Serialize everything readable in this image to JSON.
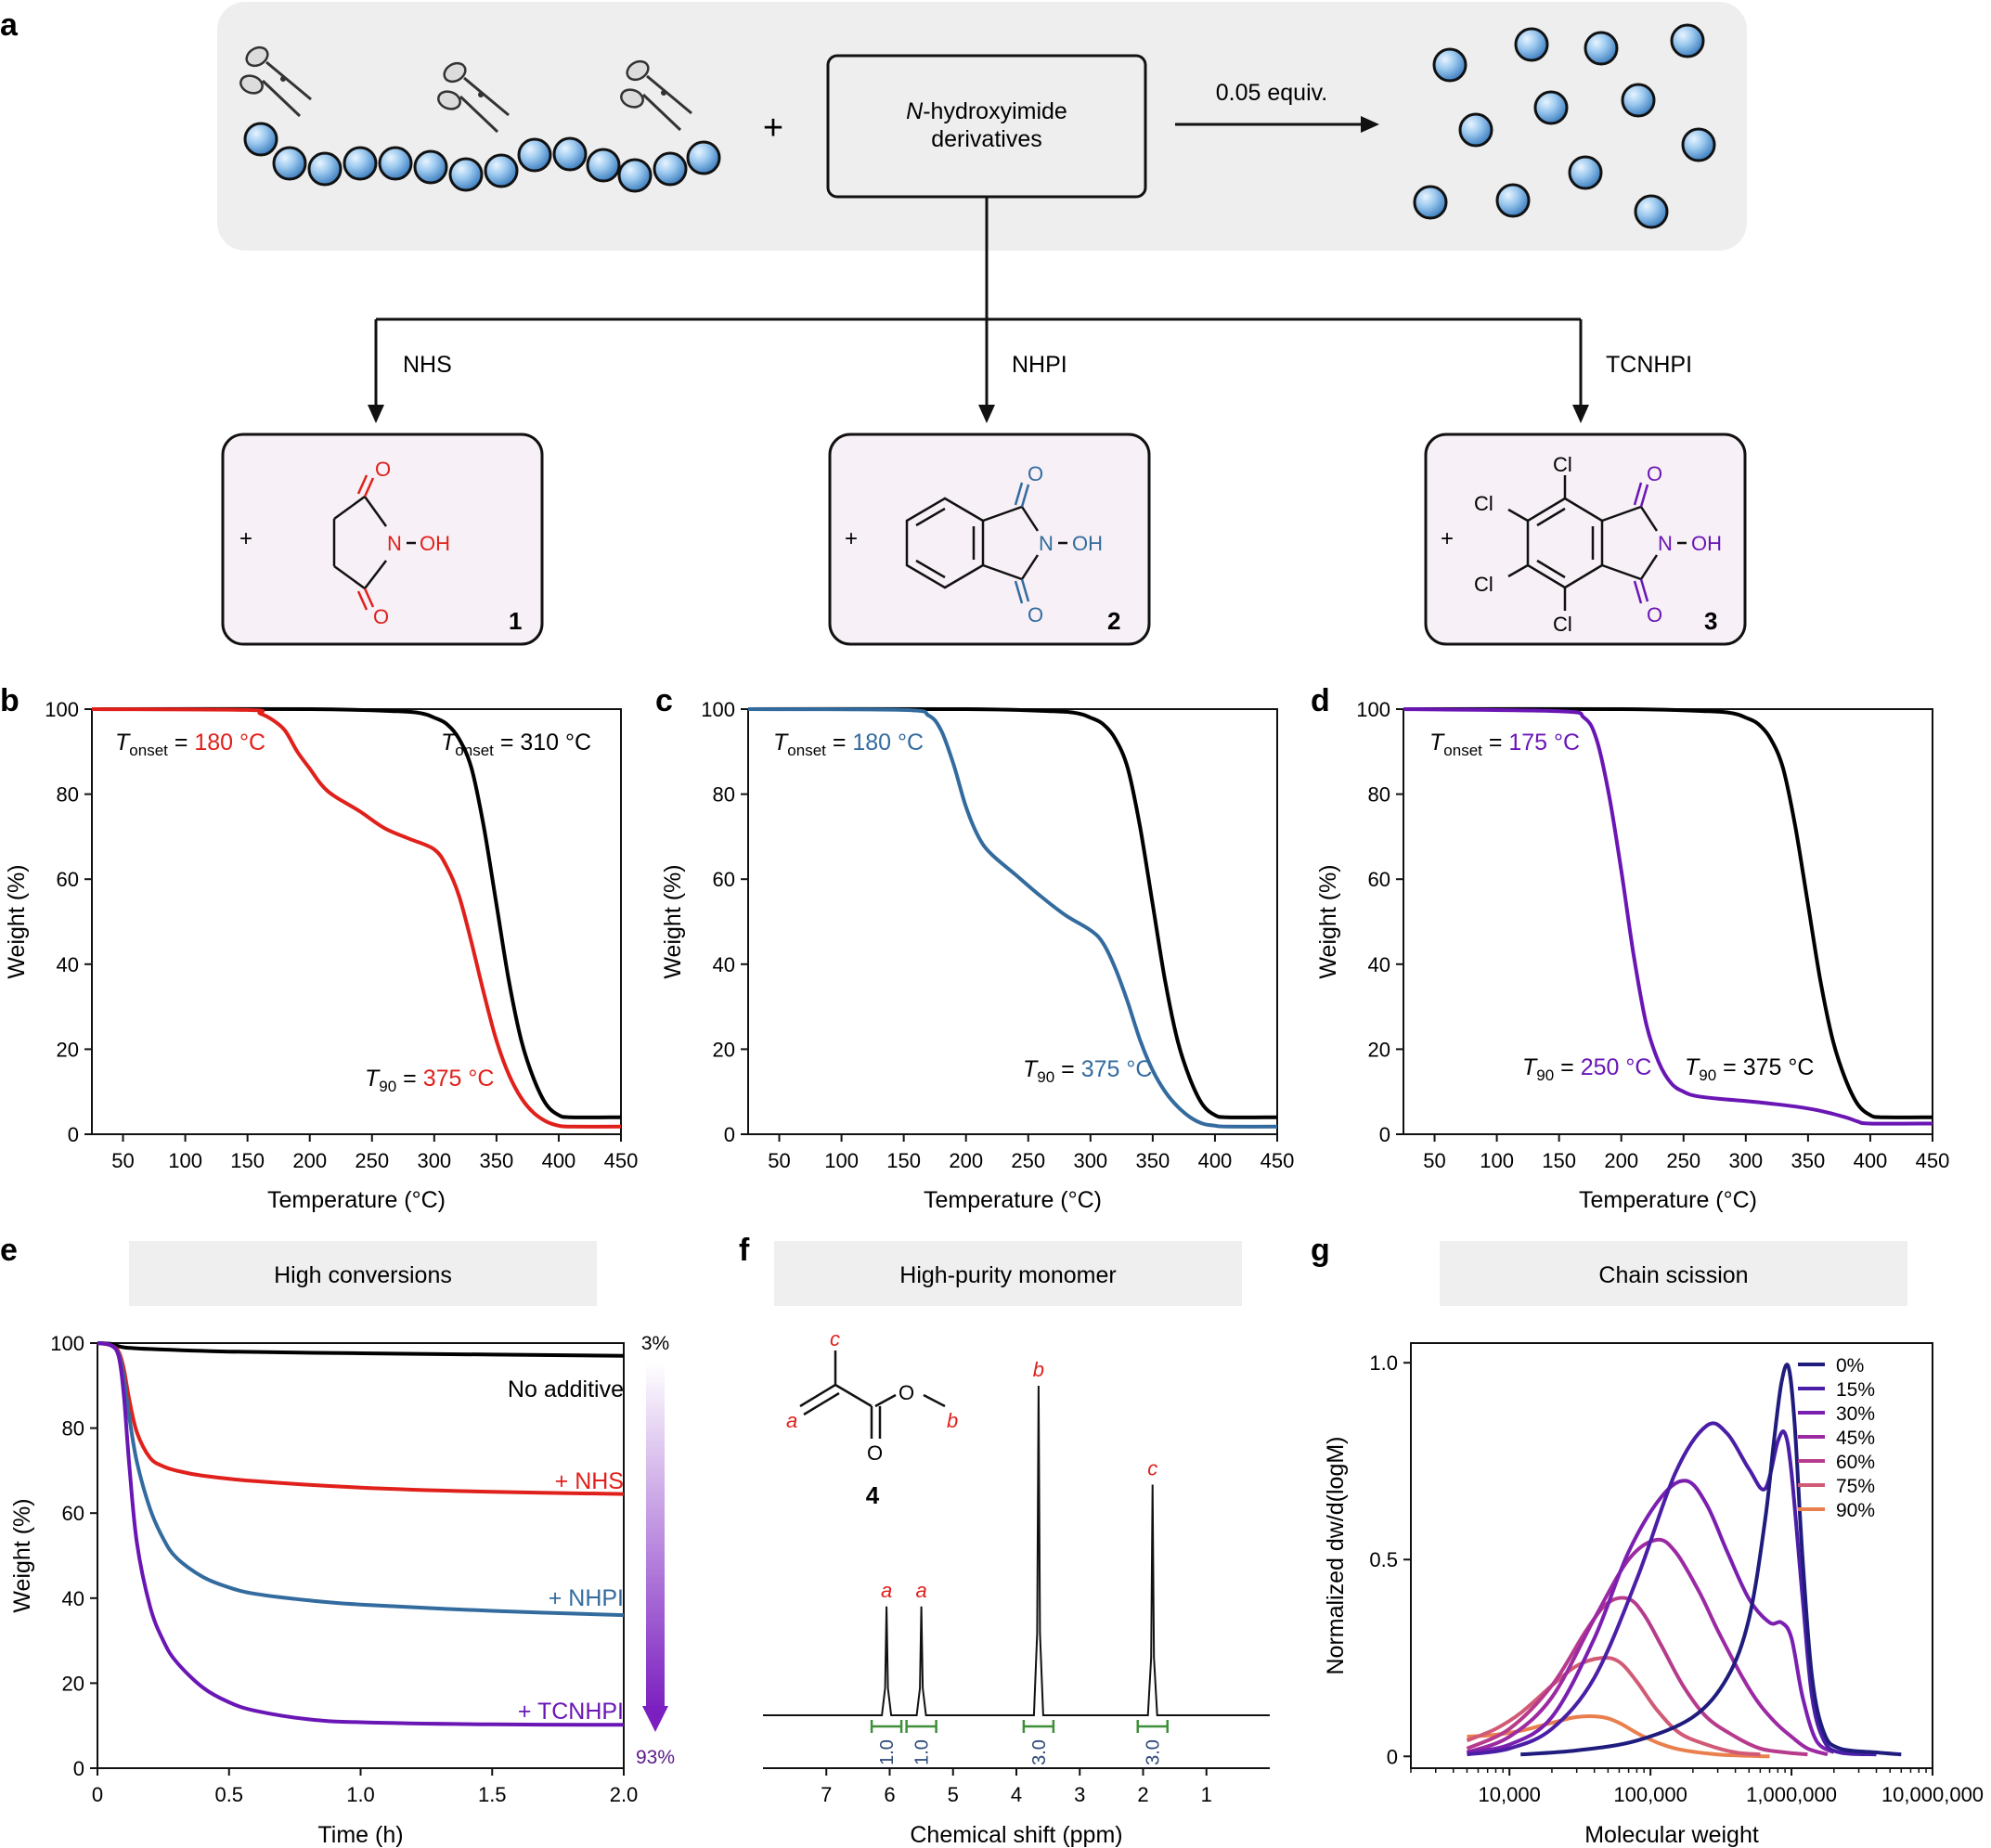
{
  "panel_labels": {
    "a": "a",
    "b": "b",
    "c": "c",
    "d": "d",
    "e": "e",
    "f": "f",
    "g": "g"
  },
  "scheme": {
    "plus": "+",
    "box_line1_italic": "N",
    "box_line1_rest": "-hydroxyimide",
    "box_line2": "derivatives",
    "equiv": "0.05 equiv.",
    "branches": [
      "NHS",
      "NHPI",
      "TCNHPI"
    ],
    "compounds": [
      {
        "plus": "+",
        "number": "1",
        "O": "O",
        "N": "N",
        "OH": "OH",
        "color": "#e0201b"
      },
      {
        "plus": "+",
        "number": "2",
        "O": "O",
        "N": "N",
        "OH": "OH",
        "color": "#2f6ea8"
      },
      {
        "plus": "+",
        "number": "3",
        "O": "O",
        "N": "N",
        "OH": "OH",
        "Cl": "Cl",
        "color": "#6a1ba8"
      }
    ]
  },
  "colors": {
    "black": "#000000",
    "red": "#e0201b",
    "blue": "#336b9e",
    "purple": "#6a16b5",
    "bead": "#8fc0ea",
    "scheme_bg": "#eeeeee",
    "box_bg": "#f7f0f6",
    "header_bg": "#efefef",
    "integration": "#3f8f3a",
    "peak_label": "#e0201b"
  },
  "chart_data": [
    {
      "panel": "b",
      "type": "line",
      "xlabel": "Temperature (°C)",
      "ylabel": "Weight (%)",
      "xlim": [
        25,
        450
      ],
      "ylim": [
        0,
        100
      ],
      "xticks": [
        50,
        100,
        150,
        200,
        250,
        300,
        350,
        400,
        450
      ],
      "yticks": [
        0,
        20,
        40,
        60,
        80,
        100
      ],
      "series": [
        {
          "color": "#000000",
          "x": [
            25,
            200,
            270,
            290,
            300,
            310,
            320,
            330,
            340,
            350,
            360,
            370,
            380,
            390,
            400,
            410,
            450
          ],
          "y": [
            100,
            100,
            99.5,
            99,
            98,
            96.5,
            93,
            86,
            72,
            54,
            36,
            22,
            13,
            7,
            4.5,
            4,
            4
          ]
        },
        {
          "color": "#e0201b",
          "x": [
            25,
            150,
            160,
            170,
            180,
            190,
            200,
            210,
            220,
            240,
            260,
            280,
            300,
            310,
            320,
            330,
            340,
            350,
            360,
            370,
            380,
            390,
            400,
            410,
            450
          ],
          "y": [
            100,
            99.8,
            99,
            97.5,
            95,
            90,
            86,
            82,
            79.5,
            76,
            72,
            69.5,
            67,
            63,
            56,
            45,
            33,
            22,
            14,
            8.5,
            5,
            3,
            2,
            1.8,
            1.8
          ]
        }
      ],
      "annotations": [
        {
          "text_italic": "T",
          "sub": "onset",
          "eq": " = ",
          "value": "180 °C",
          "color": "#e0201b"
        },
        {
          "text_italic": "T",
          "sub": "onset",
          "eq": " = ",
          "value": "310 °C",
          "color": "#000000"
        },
        {
          "text_italic": "T",
          "sub": "90",
          "eq": " = ",
          "value": "375 °C",
          "color": "#e0201b"
        }
      ]
    },
    {
      "panel": "c",
      "type": "line",
      "xlabel": "Temperature (°C)",
      "ylabel": "Weight (%)",
      "xlim": [
        25,
        450
      ],
      "ylim": [
        0,
        100
      ],
      "xticks": [
        50,
        100,
        150,
        200,
        250,
        300,
        350,
        400,
        450
      ],
      "yticks": [
        0,
        20,
        40,
        60,
        80,
        100
      ],
      "series": [
        {
          "color": "#000000",
          "x": [
            25,
            200,
            270,
            290,
            300,
            310,
            320,
            330,
            340,
            350,
            360,
            370,
            380,
            390,
            400,
            410,
            450
          ],
          "y": [
            100,
            100,
            99.5,
            99,
            98,
            96.5,
            93,
            86,
            72,
            54,
            36,
            22,
            13,
            7,
            4.5,
            4,
            4
          ]
        },
        {
          "color": "#336b9e",
          "x": [
            25,
            150,
            170,
            180,
            190,
            200,
            210,
            220,
            240,
            260,
            280,
            300,
            310,
            320,
            330,
            340,
            350,
            360,
            370,
            380,
            390,
            400,
            410,
            450
          ],
          "y": [
            100,
            99.8,
            98.5,
            95,
            87,
            77,
            70,
            66,
            61,
            56,
            51.5,
            48,
            45,
            39,
            31,
            22,
            15,
            10,
            6.5,
            4,
            2.5,
            2,
            1.8,
            1.8
          ]
        }
      ],
      "annotations": [
        {
          "text_italic": "T",
          "sub": "onset",
          "eq": " = ",
          "value": "180 °C",
          "color": "#336b9e"
        },
        {
          "text_italic": "T",
          "sub": "90",
          "eq": " = ",
          "value": "375 °C",
          "color": "#336b9e"
        }
      ]
    },
    {
      "panel": "d",
      "type": "line",
      "xlabel": "Temperature (°C)",
      "ylabel": "Weight (%)",
      "xlim": [
        25,
        450
      ],
      "ylim": [
        0,
        100
      ],
      "xticks": [
        50,
        100,
        150,
        200,
        250,
        300,
        350,
        400,
        450
      ],
      "yticks": [
        0,
        20,
        40,
        60,
        80,
        100
      ],
      "series": [
        {
          "color": "#000000",
          "x": [
            25,
            200,
            270,
            290,
            300,
            310,
            320,
            330,
            340,
            350,
            360,
            370,
            380,
            390,
            400,
            410,
            450
          ],
          "y": [
            100,
            100,
            99.5,
            99,
            98,
            96.5,
            93,
            86,
            72,
            54,
            36,
            22,
            13,
            7,
            4.5,
            4,
            4
          ]
        },
        {
          "color": "#6a16b5",
          "x": [
            25,
            150,
            170,
            180,
            190,
            200,
            210,
            220,
            230,
            240,
            250,
            260,
            280,
            300,
            320,
            340,
            360,
            380,
            390,
            400,
            450
          ],
          "y": [
            100,
            99.5,
            98,
            93,
            80,
            62,
            42,
            26,
            17,
            12,
            10,
            9,
            8.3,
            7.8,
            7.2,
            6.5,
            5.5,
            4,
            3,
            2.5,
            2.5
          ]
        }
      ],
      "annotations": [
        {
          "text_italic": "T",
          "sub": "onset",
          "eq": " = ",
          "value": "175 °C",
          "color": "#6a16b5"
        },
        {
          "text_italic": "T",
          "sub": "90",
          "eq": " = ",
          "value": "250 °C",
          "color": "#6a16b5"
        },
        {
          "text_italic": "T",
          "sub": "90",
          "eq": " = ",
          "value": "375 °C",
          "color": "#000000"
        }
      ]
    },
    {
      "panel": "e",
      "type": "line",
      "header": "High conversions",
      "xlabel": "Time (h)",
      "ylabel": "Weight (%)",
      "xlim": [
        0,
        2.0
      ],
      "ylim": [
        0,
        100
      ],
      "xticks": [
        "0",
        "0.5",
        "1.0",
        "1.5",
        "2.0"
      ],
      "xtick_values": [
        0,
        0.5,
        1.0,
        1.5,
        2.0
      ],
      "yticks": [
        0,
        20,
        40,
        60,
        80,
        100
      ],
      "series": [
        {
          "name": "No additive",
          "color": "#000000",
          "x": [
            0,
            0.05,
            0.1,
            0.2,
            0.5,
            1.0,
            1.5,
            2.0
          ],
          "y": [
            100,
            99.8,
            99,
            98.6,
            98,
            97.6,
            97.3,
            97
          ]
        },
        {
          "name": "+ NHS",
          "color": "#e0201b",
          "x": [
            0,
            0.05,
            0.08,
            0.1,
            0.12,
            0.15,
            0.2,
            0.25,
            0.3,
            0.4,
            0.6,
            1.0,
            1.5,
            2.0
          ],
          "y": [
            100,
            99.5,
            98,
            94,
            87,
            79,
            73,
            71,
            70,
            68.8,
            67.5,
            66,
            65,
            64.5
          ]
        },
        {
          "name": "+ NHPI",
          "color": "#336b9e",
          "x": [
            0,
            0.05,
            0.08,
            0.1,
            0.12,
            0.15,
            0.2,
            0.25,
            0.3,
            0.4,
            0.5,
            0.6,
            0.8,
            1.0,
            1.5,
            2.0
          ],
          "y": [
            100,
            99.5,
            97.5,
            92,
            83,
            72,
            61,
            54,
            49.5,
            45,
            42.5,
            41,
            39.5,
            38.5,
            37,
            36
          ]
        },
        {
          "name": "+ TCNHPI",
          "color": "#6a16b5",
          "x": [
            0,
            0.05,
            0.08,
            0.1,
            0.12,
            0.15,
            0.2,
            0.25,
            0.3,
            0.4,
            0.5,
            0.6,
            0.8,
            1.0,
            1.5,
            2.0
          ],
          "y": [
            100,
            99.5,
            97,
            88,
            72,
            53,
            38,
            30,
            25,
            19,
            15.5,
            13.5,
            11.5,
            10.8,
            10.3,
            10.2
          ]
        }
      ],
      "gradient_top": "3%",
      "gradient_bottom": "93%"
    },
    {
      "panel": "f",
      "type": "line",
      "header": "High-purity monomer",
      "xlabel": "Chemical shift (ppm)",
      "xlim": [
        8,
        0
      ],
      "xticks": [
        7,
        6,
        5,
        4,
        3,
        2,
        1
      ],
      "peaks": [
        {
          "label": "a",
          "ppm": 6.05,
          "height": 0.33
        },
        {
          "label": "a",
          "ppm": 5.5,
          "height": 0.33
        },
        {
          "label": "b",
          "ppm": 3.65,
          "height": 1.0
        },
        {
          "label": "c",
          "ppm": 1.85,
          "height": 0.7
        }
      ],
      "integrations": [
        {
          "ppm": 6.05,
          "value": "1.0"
        },
        {
          "ppm": 5.5,
          "value": "1.0"
        },
        {
          "ppm": 3.65,
          "value": "3.0"
        },
        {
          "ppm": 1.85,
          "value": "3.0"
        }
      ],
      "structure": {
        "number": "4",
        "labels": [
          "c",
          "a",
          "b"
        ],
        "O": "O"
      }
    },
    {
      "panel": "g",
      "type": "line",
      "header": "Chain scission",
      "xlabel": "Molecular weight",
      "ylabel": "Normalized dw/d(logM)",
      "xscale": "log",
      "xlim": [
        2000,
        10000000
      ],
      "ylim": [
        -0.03,
        1.05
      ],
      "xticks": [
        "10,000",
        "100,000",
        "1,000,000",
        "10,000,000"
      ],
      "xtick_values": [
        10000,
        100000,
        1000000,
        10000000
      ],
      "yticks": [
        "0",
        "0.5",
        "1.0"
      ],
      "ytick_values": [
        0,
        0.5,
        1.0
      ],
      "legend": "top-right",
      "series": [
        {
          "name": "0%",
          "color": "#1f1c7e",
          "x": [
            12000,
            30000,
            80000,
            200000,
            350000,
            500000,
            650000,
            750000,
            850000,
            950000,
            1050000,
            1200000,
            1400000,
            1700000,
            2200000,
            4000000,
            6000000
          ],
          "y": [
            0.005,
            0.015,
            0.04,
            0.1,
            0.2,
            0.35,
            0.6,
            0.8,
            0.95,
            0.99,
            0.85,
            0.5,
            0.2,
            0.06,
            0.02,
            0.01,
            0.005
          ]
        },
        {
          "name": "15%",
          "color": "#4a1ea6",
          "x": [
            5000,
            10000,
            20000,
            40000,
            80000,
            150000,
            250000,
            350000,
            500000,
            650000,
            800000,
            900000,
            1000000,
            1200000,
            1400000,
            1700000,
            2200000,
            4000000
          ],
          "y": [
            0.005,
            0.02,
            0.07,
            0.2,
            0.45,
            0.72,
            0.84,
            0.82,
            0.73,
            0.68,
            0.8,
            0.82,
            0.72,
            0.4,
            0.15,
            0.04,
            0.01,
            0.005
          ]
        },
        {
          "name": "30%",
          "color": "#7a1fb0",
          "x": [
            5000,
            10000,
            20000,
            40000,
            70000,
            120000,
            180000,
            250000,
            350000,
            500000,
            700000,
            850000,
            1000000,
            1200000,
            1500000,
            2000000
          ],
          "y": [
            0.01,
            0.03,
            0.1,
            0.3,
            0.52,
            0.66,
            0.7,
            0.64,
            0.52,
            0.4,
            0.34,
            0.34,
            0.3,
            0.15,
            0.04,
            0.01
          ]
        },
        {
          "name": "45%",
          "color": "#9c2aa2",
          "x": [
            5000,
            10000,
            20000,
            40000,
            70000,
            110000,
            150000,
            220000,
            300000,
            450000,
            600000,
            800000,
            1000000,
            1300000,
            1800000
          ],
          "y": [
            0.01,
            0.05,
            0.15,
            0.35,
            0.5,
            0.55,
            0.52,
            0.42,
            0.32,
            0.2,
            0.13,
            0.08,
            0.05,
            0.02,
            0.005
          ]
        },
        {
          "name": "60%",
          "color": "#b73b8c",
          "x": [
            5000,
            10000,
            20000,
            35000,
            50000,
            70000,
            90000,
            120000,
            170000,
            250000,
            400000,
            600000,
            900000,
            1300000
          ],
          "y": [
            0.02,
            0.07,
            0.18,
            0.32,
            0.39,
            0.4,
            0.36,
            0.28,
            0.18,
            0.1,
            0.05,
            0.02,
            0.01,
            0.005
          ]
        },
        {
          "name": "75%",
          "color": "#d15a76",
          "x": [
            5000,
            8000,
            12000,
            20000,
            30000,
            45000,
            60000,
            80000,
            110000,
            160000,
            250000,
            400000,
            600000
          ],
          "y": [
            0.04,
            0.07,
            0.11,
            0.18,
            0.23,
            0.25,
            0.24,
            0.19,
            0.12,
            0.06,
            0.03,
            0.01,
            0.005
          ]
        },
        {
          "name": "90%",
          "color": "#ea7f4e",
          "x": [
            5000,
            8000,
            12000,
            20000,
            30000,
            45000,
            60000,
            90000,
            150000,
            300000,
            700000
          ],
          "y": [
            0.05,
            0.055,
            0.065,
            0.085,
            0.1,
            0.1,
            0.085,
            0.05,
            0.02,
            0.005,
            0.0
          ]
        }
      ]
    }
  ]
}
